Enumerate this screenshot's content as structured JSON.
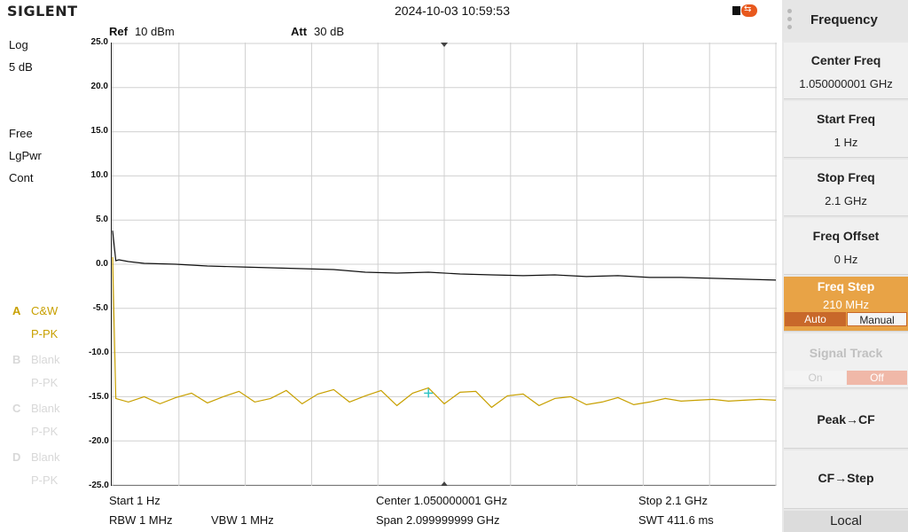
{
  "header": {
    "brand": "SIGLENT",
    "datetime": "2024-10-03 10:59:53",
    "usb_icon": "usb-icon",
    "usb_glyph": "⇆"
  },
  "settings": {
    "ref_label": "Ref",
    "ref_value": "10 dBm",
    "att_label": "Att",
    "att_value": "30 dB"
  },
  "left_info": {
    "scale_type": "Log",
    "scale_div": "5 dB",
    "trigger": "Free",
    "detector": "LgPwr",
    "sweep": "Cont"
  },
  "traces": [
    {
      "letter": "A",
      "mode": "C&W",
      "det": "P-PK",
      "active": true
    },
    {
      "letter": "B",
      "mode": "Blank",
      "det": "P-PK",
      "active": false
    },
    {
      "letter": "C",
      "mode": "Blank",
      "det": "P-PK",
      "active": false
    },
    {
      "letter": "D",
      "mode": "Blank",
      "det": "P-PK",
      "active": false
    }
  ],
  "bottom_info": {
    "start": "Start  1 Hz",
    "center": "Center  1.050000001 GHz",
    "stop": "Stop  2.1 GHz",
    "rbw": "RBW  1 MHz",
    "vbw": "VBW  1 MHz",
    "span": "Span  2.099999999 GHz",
    "swt": "SWT  411.6 ms"
  },
  "menu": {
    "title": "Frequency",
    "center_freq_label": "Center Freq",
    "center_freq_value": "1.050000001 GHz",
    "start_freq_label": "Start Freq",
    "start_freq_value": "1 Hz",
    "stop_freq_label": "Stop Freq",
    "stop_freq_value": "2.1 GHz",
    "freq_offset_label": "Freq Offset",
    "freq_offset_value": "0 Hz",
    "freq_step_label": "Freq Step",
    "freq_step_value": "210 MHz",
    "freq_step_auto": "Auto",
    "freq_step_manual": "Manual",
    "signal_track_label": "Signal Track",
    "signal_track_on": "On",
    "signal_track_off": "Off",
    "peak_cf_label": "Peak→CF",
    "cf_step_label": "CF→Step",
    "local_label": "Local"
  },
  "colors": {
    "trace_black": "#111111",
    "trace_yellow": "#c8a000",
    "marker": "#2fc4c4",
    "active_key": "#e8a346",
    "active_segment": "#c8682a",
    "disabled_off": "#f0b8a8"
  },
  "chart_data": {
    "type": "line",
    "xlabel": "",
    "ylabel": "",
    "xlim": [
      0,
      2.1
    ],
    "ylim": [
      -25,
      25
    ],
    "y_ticks": [
      "25.0",
      "20.0",
      "15.0",
      "10.0",
      "5.0",
      "0.0",
      "-5.0",
      "-10.0",
      "-15.0",
      "-20.0",
      "-25.0"
    ],
    "grid": true,
    "series": [
      {
        "color": "#111111",
        "x": [
          0.0,
          0.01,
          0.02,
          0.05,
          0.1,
          0.2,
          0.3,
          0.4,
          0.5,
          0.6,
          0.7,
          0.8,
          0.9,
          1.0,
          1.1,
          1.2,
          1.3,
          1.4,
          1.5,
          1.6,
          1.7,
          1.8,
          1.9,
          2.0,
          2.1
        ],
        "values": [
          3.8,
          0.4,
          0.5,
          0.3,
          0.1,
          0.0,
          -0.2,
          -0.3,
          -0.4,
          -0.5,
          -0.6,
          -0.9,
          -1.0,
          -0.9,
          -1.1,
          -1.2,
          -1.3,
          -1.2,
          -1.4,
          -1.3,
          -1.5,
          -1.5,
          -1.6,
          -1.7,
          -1.8
        ]
      },
      {
        "color": "#c8a000",
        "x": [
          0.0,
          0.01,
          0.05,
          0.1,
          0.15,
          0.2,
          0.25,
          0.3,
          0.35,
          0.4,
          0.45,
          0.5,
          0.55,
          0.6,
          0.65,
          0.7,
          0.75,
          0.8,
          0.85,
          0.9,
          0.95,
          1.0,
          1.05,
          1.1,
          1.15,
          1.2,
          1.25,
          1.3,
          1.35,
          1.4,
          1.45,
          1.5,
          1.55,
          1.6,
          1.65,
          1.7,
          1.75,
          1.8,
          1.85,
          1.9,
          1.95,
          2.0,
          2.05,
          2.1
        ],
        "values": [
          0.8,
          -15.2,
          -15.6,
          -15.0,
          -15.8,
          -15.1,
          -14.6,
          -15.7,
          -15.0,
          -14.4,
          -15.6,
          -15.2,
          -14.3,
          -15.8,
          -14.7,
          -14.2,
          -15.6,
          -14.9,
          -14.3,
          -16.0,
          -14.6,
          -14.0,
          -15.8,
          -14.5,
          -14.4,
          -16.2,
          -14.9,
          -14.7,
          -16.0,
          -15.2,
          -15.0,
          -15.9,
          -15.6,
          -15.1,
          -15.9,
          -15.6,
          -15.2,
          -15.5,
          -15.4,
          -15.3,
          -15.5,
          -15.4,
          -15.3,
          -15.4
        ]
      }
    ],
    "marker": {
      "x": 1.0,
      "y": -14.6
    }
  }
}
